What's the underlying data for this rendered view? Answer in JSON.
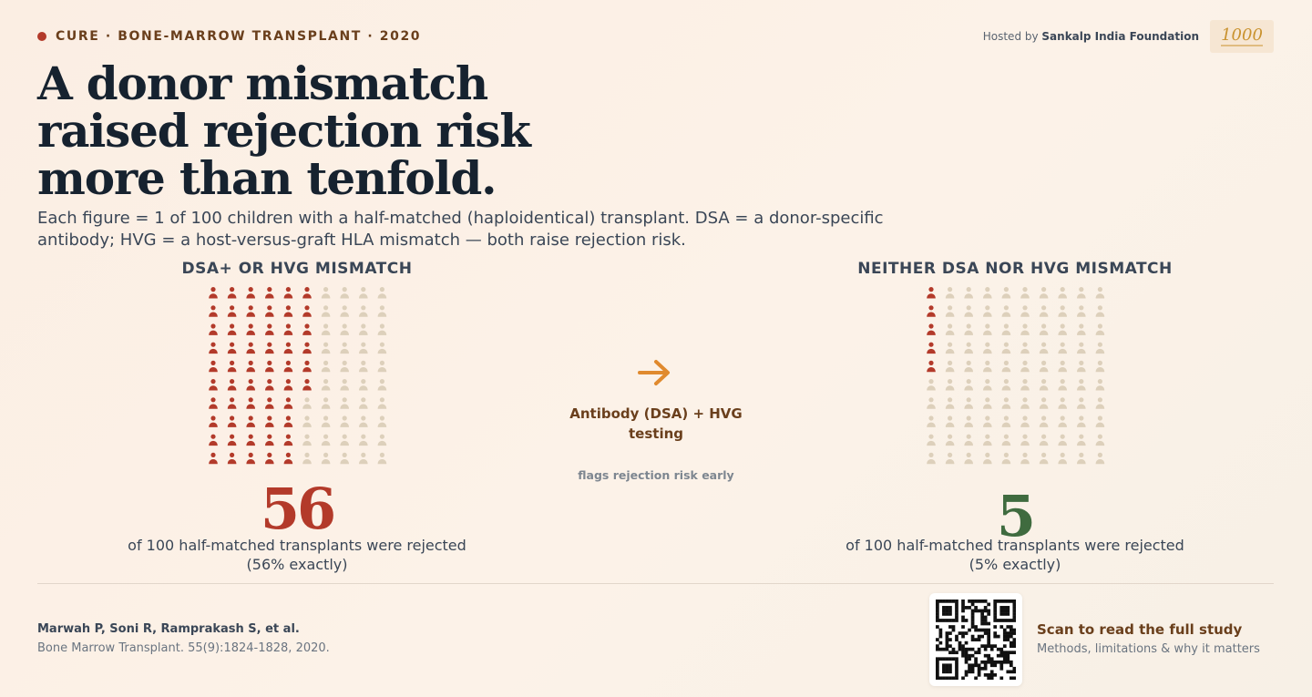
{
  "header": {
    "kicker": "CURE · BONE-MARROW TRANSPLANT · 2020",
    "host_prefix": "Hosted by ",
    "host_name": "Sankalp India Foundation",
    "logo_text": "1000"
  },
  "title": "A donor mismatch raised rejection risk more than tenfold.",
  "subtitle": "Each figure = 1 of 100 children with a half-matched (haploidentical) transplant. DSA = a donor-specific antibody; HVG = a host-versus-graft HLA mismatch — both raise rejection risk.",
  "chart_data": {
    "type": "pictogram",
    "total_per_group": 100,
    "groups": [
      {
        "heading": "DSA+ OR HVG MISMATCH",
        "rejected": 56,
        "big_number": "56",
        "caption": "of 100 half-matched transplants were rejected",
        "detail": "(56% exactly)",
        "color": "#b33a2a"
      },
      {
        "heading": "NEITHER DSA NOR HVG MISMATCH",
        "rejected": 5,
        "big_number": "5",
        "caption": "of 100 half-matched transplants were rejected",
        "detail": "(5% exactly)",
        "color": "#3f6b3f"
      }
    ],
    "figure_color_rejected": "#b33a2a",
    "figure_color_other": "#ddd0bb"
  },
  "middle": {
    "label": "Antibody (DSA) + HVG testing",
    "sub": "flags rejection risk early",
    "arrow_color": "#e08a2e"
  },
  "citation": {
    "authors": "Marwah P, Soni R, Ramprakash S, et al.",
    "journal": "Bone Marrow Transplant. 55(9):1824-1828, 2020."
  },
  "footer": {
    "scan_title": "Scan to read the full study",
    "scan_sub": "Methods, limitations & why it matters"
  }
}
